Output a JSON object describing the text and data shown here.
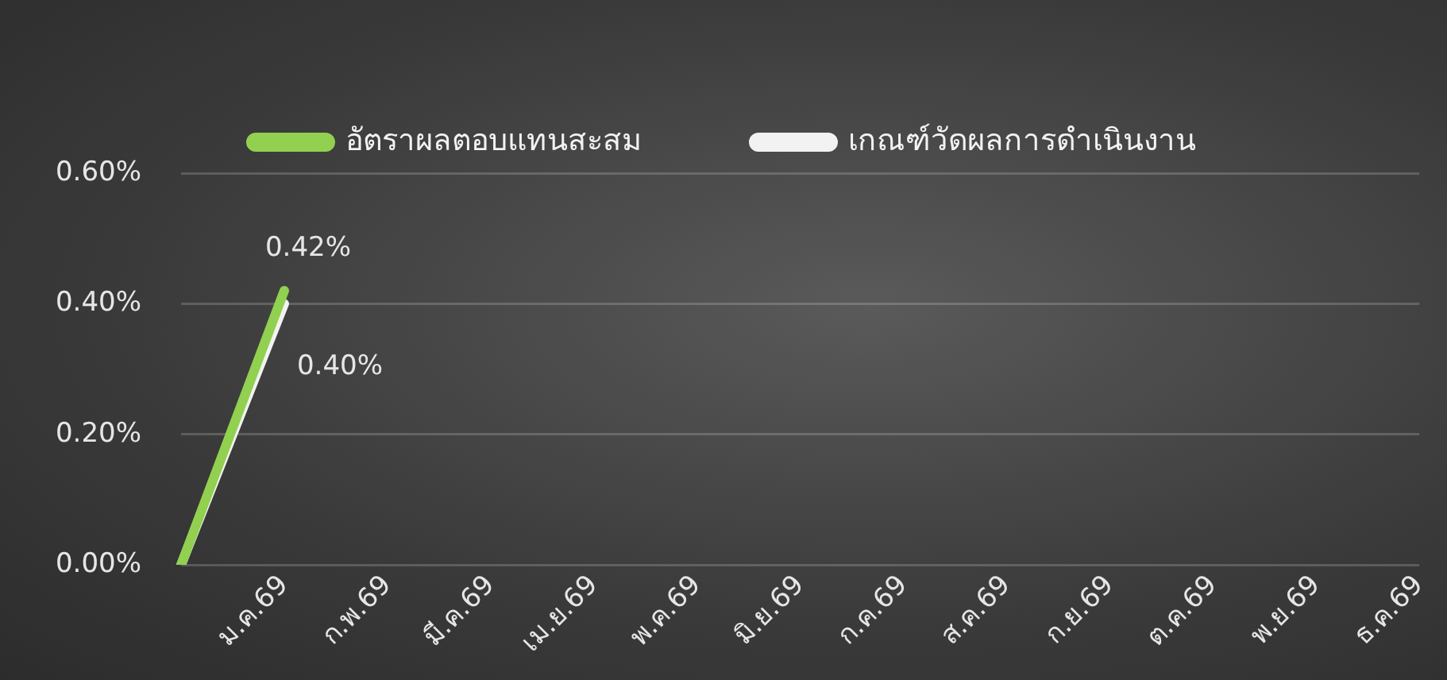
{
  "chart_data": {
    "type": "line",
    "categories": [
      null,
      "ม.ค.69",
      "ก.พ.69",
      "มี.ค.69",
      "เม.ย.69",
      "พ.ค.69",
      "มิ.ย.69",
      "ก.ค.69",
      "ส.ค.69",
      "ก.ย.69",
      "ต.ค.69",
      "พ.ย.69",
      "ธ.ค.69"
    ],
    "series": [
      {
        "name": "อัตราผลตอบแทนสะสม",
        "color": "#92d050",
        "values": [
          0,
          0.42,
          null,
          null,
          null,
          null,
          null,
          null,
          null,
          null,
          null,
          null,
          null
        ],
        "value_labels": [
          null,
          "0.42%",
          null,
          null,
          null,
          null,
          null,
          null,
          null,
          null,
          null,
          null,
          null
        ]
      },
      {
        "name": "เกณฑ์วัดผลการดำเนินงาน",
        "color": "#f2f2f2",
        "values": [
          0,
          0.4,
          null,
          null,
          null,
          null,
          null,
          null,
          null,
          null,
          null,
          null,
          null
        ],
        "value_labels": [
          null,
          "0.40%",
          null,
          null,
          null,
          null,
          null,
          null,
          null,
          null,
          null,
          null,
          null
        ]
      }
    ],
    "ylim": [
      0,
      0.6
    ],
    "yticks": [
      {
        "value": 0,
        "label": "0.00%"
      },
      {
        "value": 0.2,
        "label": "0.20%"
      },
      {
        "value": 0.4,
        "label": "0.40%"
      },
      {
        "value": 0.6,
        "label": "0.60%"
      }
    ],
    "grid": "y",
    "legend": "top",
    "marker": "none",
    "line_style": "solid"
  }
}
